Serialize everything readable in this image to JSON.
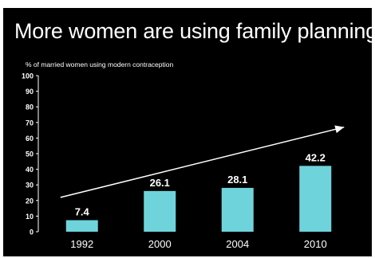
{
  "title": "More women are using family planning",
  "colors": {
    "background": "#000000",
    "text": "#ffffff",
    "bar": "#6fd3db",
    "arrow": "#ffffff"
  },
  "chart_data": {
    "type": "bar",
    "title": "More women are using family planning",
    "ylabel": "% of married women using modern contraception",
    "xlabel": "",
    "categories": [
      "1992",
      "2000",
      "2004",
      "2010"
    ],
    "values": [
      7.4,
      26.1,
      28.1,
      42.2
    ],
    "data_labels": [
      "7.4",
      "26.1",
      "28.1",
      "42.2"
    ],
    "ylim": [
      0,
      100
    ],
    "yticks": [
      "0",
      "10",
      "20",
      "30",
      "40",
      "50",
      "60",
      "70",
      "80",
      "90",
      "100"
    ],
    "grid": false,
    "legend": "none",
    "annotations": [
      {
        "type": "trend-arrow",
        "from": {
          "x": "1992",
          "y": 22
        },
        "to": {
          "x": "2010",
          "y": 67
        }
      }
    ]
  }
}
